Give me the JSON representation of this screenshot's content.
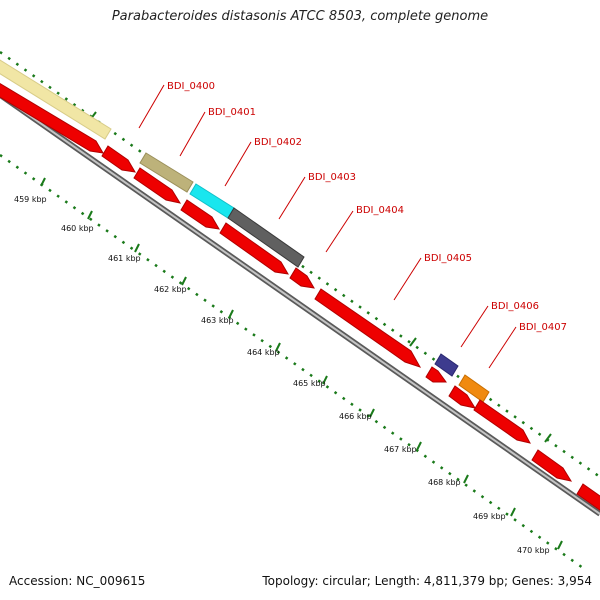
{
  "header": {
    "title": "Parabacteroides distasonis ATCC 8503, complete genome"
  },
  "footer": {
    "accession": "Accession: NC_009615",
    "topology": "Topology: circular; Length: 4,811,379 bp; Genes: 3,954"
  },
  "scale": {
    "unit": "kbp",
    "ticks": [
      "459 kbp",
      "460 kbp",
      "461 kbp",
      "462 kbp",
      "463 kbp",
      "464 kbp",
      "465 kbp",
      "466 kbp",
      "467 kbp",
      "468 kbp",
      "469 kbp",
      "470 kbp"
    ]
  },
  "gene_labels": [
    "BDI_0400",
    "BDI_0401",
    "BDI_0402",
    "BDI_0403",
    "BDI_0404",
    "BDI_0405",
    "BDI_0406",
    "BDI_0407"
  ],
  "colors": {
    "cds": "#ee0000",
    "backbone": "#8c8c8c",
    "dotted_track": "#1a7a1a",
    "label": "#cc0000",
    "feature_pale_yellow": "#f1e6a5",
    "feature_khaki": "#bdb27a",
    "feature_cyan": "#19e6ee",
    "feature_dark_gray": "#606060",
    "feature_navy": "#3d3b8e",
    "feature_orange": "#f08a10"
  }
}
